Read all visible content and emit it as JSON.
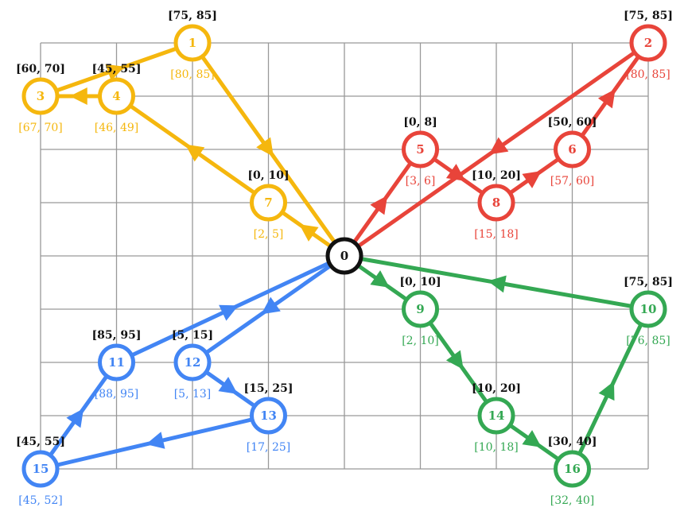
{
  "colors": {
    "grid": "#999999",
    "depot": "#111111",
    "window_text": "#111111",
    "background": "#ffffff"
  },
  "grid": {
    "cols": 8,
    "rows": 8
  },
  "depot": {
    "label": "0",
    "col": 4,
    "row": 4
  },
  "routes": [
    {
      "name": "route-yellow",
      "color": "#f5b70e",
      "path": [
        "0",
        "7",
        "4",
        "3",
        "1",
        "0"
      ],
      "nodes": [
        {
          "id": "1",
          "col": 2,
          "row": 0,
          "window": "[75, 85]",
          "arrival": "[80, 85]"
        },
        {
          "id": "3",
          "col": 0,
          "row": 1,
          "window": "[60, 70]",
          "arrival": "[67, 70]"
        },
        {
          "id": "4",
          "col": 1,
          "row": 1,
          "window": "[45, 55]",
          "arrival": "[46, 49]"
        },
        {
          "id": "7",
          "col": 3,
          "row": 3,
          "window": "[0, 10]",
          "arrival": "[2, 5]"
        }
      ]
    },
    {
      "name": "route-red",
      "color": "#e8443a",
      "path": [
        "0",
        "5",
        "8",
        "6",
        "2",
        "0"
      ],
      "nodes": [
        {
          "id": "2",
          "col": 8,
          "row": 0,
          "window": "[75, 85]",
          "arrival": "[80, 85]"
        },
        {
          "id": "5",
          "col": 5,
          "row": 2,
          "window": "[0, 8]",
          "arrival": "[3, 6]"
        },
        {
          "id": "6",
          "col": 7,
          "row": 2,
          "window": "[50, 60]",
          "arrival": "[57, 60]"
        },
        {
          "id": "8",
          "col": 6,
          "row": 3,
          "window": "[10, 20]",
          "arrival": "[15, 18]"
        }
      ]
    },
    {
      "name": "route-green",
      "color": "#34a853",
      "path": [
        "0",
        "9",
        "14",
        "16",
        "10",
        "0"
      ],
      "nodes": [
        {
          "id": "9",
          "col": 5,
          "row": 5,
          "window": "[0, 10]",
          "arrival": "[2, 10]"
        },
        {
          "id": "10",
          "col": 8,
          "row": 5,
          "window": "[75, 85]",
          "arrival": "[76, 85]"
        },
        {
          "id": "14",
          "col": 6,
          "row": 7,
          "window": "[10, 20]",
          "arrival": "[10, 18]"
        },
        {
          "id": "16",
          "col": 7,
          "row": 8,
          "window": "[30, 40]",
          "arrival": "[32, 40]"
        }
      ]
    },
    {
      "name": "route-blue",
      "color": "#4285f4",
      "path": [
        "0",
        "12",
        "13",
        "15",
        "11",
        "0"
      ],
      "nodes": [
        {
          "id": "11",
          "col": 1,
          "row": 6,
          "window": "[85, 95]",
          "arrival": "[88, 95]"
        },
        {
          "id": "12",
          "col": 2,
          "row": 6,
          "window": "[5, 15]",
          "arrival": "[5, 13]"
        },
        {
          "id": "13",
          "col": 3,
          "row": 7,
          "window": "[15, 25]",
          "arrival": "[17, 25]"
        },
        {
          "id": "15",
          "col": 0,
          "row": 8,
          "window": "[45, 55]",
          "arrival": "[45, 52]"
        }
      ]
    }
  ]
}
